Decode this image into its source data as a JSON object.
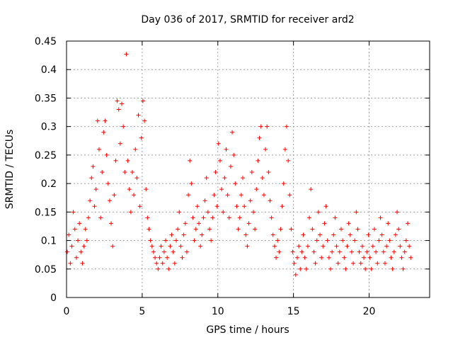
{
  "chart_data": {
    "type": "scatter",
    "title": "Day 036 of 2017, SRMTID for receiver ard2",
    "xlabel": "GPS time / hours",
    "ylabel": "SRMTID / TECUs",
    "xlim": [
      0,
      24
    ],
    "ylim": [
      0,
      0.45
    ],
    "grid": true,
    "legend": "none",
    "marker": "+",
    "color": "#ff0000",
    "x_ticks": [
      0,
      5,
      10,
      15,
      20
    ],
    "y_ticks": [
      0,
      0.05,
      0.1,
      0.15,
      0.2,
      0.25,
      0.3,
      0.35,
      0.4,
      0.45
    ],
    "x_tick_labels": [
      "0",
      "5",
      "10",
      "15",
      "20"
    ],
    "y_tick_labels": [
      "0",
      "0.05",
      "0.1",
      "0.15",
      "0.2",
      "0.25",
      "0.3",
      "0.35",
      "0.4",
      "0.45"
    ],
    "series": [
      {
        "name": "SRMTID",
        "points": [
          [
            0.05,
            0.08
          ],
          [
            0.15,
            0.11
          ],
          [
            0.25,
            0.06
          ],
          [
            0.35,
            0.09
          ],
          [
            0.45,
            0.15
          ],
          [
            0.55,
            0.12
          ],
          [
            0.65,
            0.07
          ],
          [
            0.75,
            0.1
          ],
          [
            0.85,
            0.13
          ],
          [
            0.95,
            0.08
          ],
          [
            1.05,
            0.06
          ],
          [
            1.15,
            0.09
          ],
          [
            1.25,
            0.12
          ],
          [
            1.35,
            0.1
          ],
          [
            1.45,
            0.14
          ],
          [
            1.55,
            0.17
          ],
          [
            1.65,
            0.21
          ],
          [
            1.75,
            0.23
          ],
          [
            1.85,
            0.16
          ],
          [
            1.95,
            0.19
          ],
          [
            2.05,
            0.31
          ],
          [
            2.15,
            0.26
          ],
          [
            2.25,
            0.14
          ],
          [
            2.35,
            0.22
          ],
          [
            2.45,
            0.29
          ],
          [
            2.55,
            0.31
          ],
          [
            2.65,
            0.25
          ],
          [
            2.75,
            0.2
          ],
          [
            2.85,
            0.17
          ],
          [
            2.95,
            0.13
          ],
          [
            3.05,
            0.09
          ],
          [
            3.15,
            0.18
          ],
          [
            3.25,
            0.24
          ],
          [
            3.35,
            0.345
          ],
          [
            3.45,
            0.33
          ],
          [
            3.55,
            0.27
          ],
          [
            3.65,
            0.34
          ],
          [
            3.75,
            0.3
          ],
          [
            3.85,
            0.22
          ],
          [
            3.95,
            0.427
          ],
          [
            4.05,
            0.24
          ],
          [
            4.15,
            0.19
          ],
          [
            4.25,
            0.15
          ],
          [
            4.35,
            0.22
          ],
          [
            4.45,
            0.18
          ],
          [
            4.55,
            0.26
          ],
          [
            4.65,
            0.21
          ],
          [
            4.75,
            0.32
          ],
          [
            4.85,
            0.16
          ],
          [
            4.95,
            0.28
          ],
          [
            5.05,
            0.345
          ],
          [
            5.15,
            0.31
          ],
          [
            5.25,
            0.19
          ],
          [
            5.35,
            0.14
          ],
          [
            5.45,
            0.12
          ],
          [
            5.55,
            0.1
          ],
          [
            5.65,
            0.09
          ],
          [
            5.75,
            0.08
          ],
          [
            5.85,
            0.07
          ],
          [
            5.95,
            0.06
          ],
          [
            6.05,
            0.05
          ],
          [
            6.15,
            0.07
          ],
          [
            6.25,
            0.09
          ],
          [
            6.35,
            0.06
          ],
          [
            6.45,
            0.08
          ],
          [
            6.55,
            0.1
          ],
          [
            6.65,
            0.07
          ],
          [
            6.75,
            0.05
          ],
          [
            6.85,
            0.09
          ],
          [
            6.95,
            0.11
          ],
          [
            7.05,
            0.08
          ],
          [
            7.15,
            0.06
          ],
          [
            7.25,
            0.1
          ],
          [
            7.35,
            0.12
          ],
          [
            7.45,
            0.15
          ],
          [
            7.55,
            0.09
          ],
          [
            7.65,
            0.07
          ],
          [
            7.75,
            0.11
          ],
          [
            7.85,
            0.13
          ],
          [
            7.95,
            0.08
          ],
          [
            8.05,
            0.18
          ],
          [
            8.15,
            0.24
          ],
          [
            8.25,
            0.2
          ],
          [
            8.35,
            0.14
          ],
          [
            8.45,
            0.1
          ],
          [
            8.55,
            0.12
          ],
          [
            8.65,
            0.16
          ],
          [
            8.75,
            0.13
          ],
          [
            8.85,
            0.09
          ],
          [
            8.95,
            0.11
          ],
          [
            9.05,
            0.14
          ],
          [
            9.15,
            0.17
          ],
          [
            9.25,
            0.21
          ],
          [
            9.35,
            0.15
          ],
          [
            9.45,
            0.12
          ],
          [
            9.55,
            0.1
          ],
          [
            9.65,
            0.14
          ],
          [
            9.75,
            0.18
          ],
          [
            9.85,
            0.22
          ],
          [
            9.95,
            0.16
          ],
          [
            10.05,
            0.27
          ],
          [
            10.15,
            0.24
          ],
          [
            10.25,
            0.19
          ],
          [
            10.35,
            0.15
          ],
          [
            10.45,
            0.21
          ],
          [
            10.55,
            0.26
          ],
          [
            10.65,
            0.18
          ],
          [
            10.75,
            0.14
          ],
          [
            10.85,
            0.23
          ],
          [
            10.95,
            0.29
          ],
          [
            11.05,
            0.25
          ],
          [
            11.15,
            0.2
          ],
          [
            11.25,
            0.16
          ],
          [
            11.35,
            0.12
          ],
          [
            11.45,
            0.14
          ],
          [
            11.55,
            0.18
          ],
          [
            11.65,
            0.21
          ],
          [
            11.75,
            0.16
          ],
          [
            11.85,
            0.11
          ],
          [
            11.95,
            0.09
          ],
          [
            12.05,
            0.13
          ],
          [
            12.15,
            0.17
          ],
          [
            12.25,
            0.22
          ],
          [
            12.35,
            0.15
          ],
          [
            12.45,
            0.12
          ],
          [
            12.55,
            0.19
          ],
          [
            12.65,
            0.24
          ],
          [
            12.75,
            0.28
          ],
          [
            12.85,
            0.3
          ],
          [
            12.95,
            0.21
          ],
          [
            13.05,
            0.18
          ],
          [
            13.15,
            0.26
          ],
          [
            13.25,
            0.3
          ],
          [
            13.35,
            0.22
          ],
          [
            13.45,
            0.17
          ],
          [
            13.55,
            0.14
          ],
          [
            13.65,
            0.11
          ],
          [
            13.75,
            0.09
          ],
          [
            13.85,
            0.07
          ],
          [
            13.95,
            0.1
          ],
          [
            14.05,
            0.08
          ],
          [
            14.15,
            0.12
          ],
          [
            14.25,
            0.16
          ],
          [
            14.35,
            0.2
          ],
          [
            14.45,
            0.26
          ],
          [
            14.55,
            0.3
          ],
          [
            14.65,
            0.24
          ],
          [
            14.75,
            0.18
          ],
          [
            14.85,
            0.12
          ],
          [
            14.95,
            0.08
          ],
          [
            15.05,
            0.06
          ],
          [
            15.15,
            0.04
          ],
          [
            15.25,
            0.07
          ],
          [
            15.35,
            0.09
          ],
          [
            15.45,
            0.05
          ],
          [
            15.55,
            0.08
          ],
          [
            15.65,
            0.11
          ],
          [
            15.75,
            0.07
          ],
          [
            15.85,
            0.05
          ],
          [
            15.95,
            0.09
          ],
          [
            16.05,
            0.14
          ],
          [
            16.15,
            0.19
          ],
          [
            16.25,
            0.12
          ],
          [
            16.35,
            0.08
          ],
          [
            16.45,
            0.06
          ],
          [
            16.55,
            0.1
          ],
          [
            16.65,
            0.15
          ],
          [
            16.75,
            0.11
          ],
          [
            16.85,
            0.07
          ],
          [
            16.95,
            0.09
          ],
          [
            17.05,
            0.13
          ],
          [
            17.15,
            0.16
          ],
          [
            17.25,
            0.1
          ],
          [
            17.35,
            0.07
          ],
          [
            17.45,
            0.05
          ],
          [
            17.55,
            0.08
          ],
          [
            17.65,
            0.11
          ],
          [
            17.75,
            0.14
          ],
          [
            17.85,
            0.09
          ],
          [
            17.95,
            0.06
          ],
          [
            18.05,
            0.08
          ],
          [
            18.15,
            0.12
          ],
          [
            18.25,
            0.1
          ],
          [
            18.35,
            0.07
          ],
          [
            18.45,
            0.05
          ],
          [
            18.55,
            0.09
          ],
          [
            18.65,
            0.13
          ],
          [
            18.75,
            0.11
          ],
          [
            18.85,
            0.08
          ],
          [
            18.95,
            0.06
          ],
          [
            19.05,
            0.1
          ],
          [
            19.15,
            0.15
          ],
          [
            19.25,
            0.12
          ],
          [
            19.35,
            0.08
          ],
          [
            19.45,
            0.06
          ],
          [
            19.55,
            0.09
          ],
          [
            19.65,
            0.07
          ],
          [
            19.75,
            0.05
          ],
          [
            19.85,
            0.08
          ],
          [
            19.95,
            0.11
          ],
          [
            20.05,
            0.07
          ],
          [
            20.15,
            0.05
          ],
          [
            20.25,
            0.09
          ],
          [
            20.35,
            0.12
          ],
          [
            20.45,
            0.08
          ],
          [
            20.55,
            0.06
          ],
          [
            20.65,
            0.1
          ],
          [
            20.75,
            0.14
          ],
          [
            20.85,
            0.11
          ],
          [
            20.95,
            0.08
          ],
          [
            21.05,
            0.06
          ],
          [
            21.15,
            0.09
          ],
          [
            21.25,
            0.13
          ],
          [
            21.35,
            0.1
          ],
          [
            21.45,
            0.07
          ],
          [
            21.55,
            0.05
          ],
          [
            21.65,
            0.08
          ],
          [
            21.75,
            0.11
          ],
          [
            21.85,
            0.15
          ],
          [
            21.95,
            0.12
          ],
          [
            22.05,
            0.09
          ],
          [
            22.15,
            0.07
          ],
          [
            22.25,
            0.05
          ],
          [
            22.35,
            0.08
          ],
          [
            22.45,
            0.1
          ],
          [
            22.55,
            0.13
          ],
          [
            22.65,
            0.09
          ],
          [
            22.75,
            0.07
          ]
        ]
      }
    ]
  }
}
